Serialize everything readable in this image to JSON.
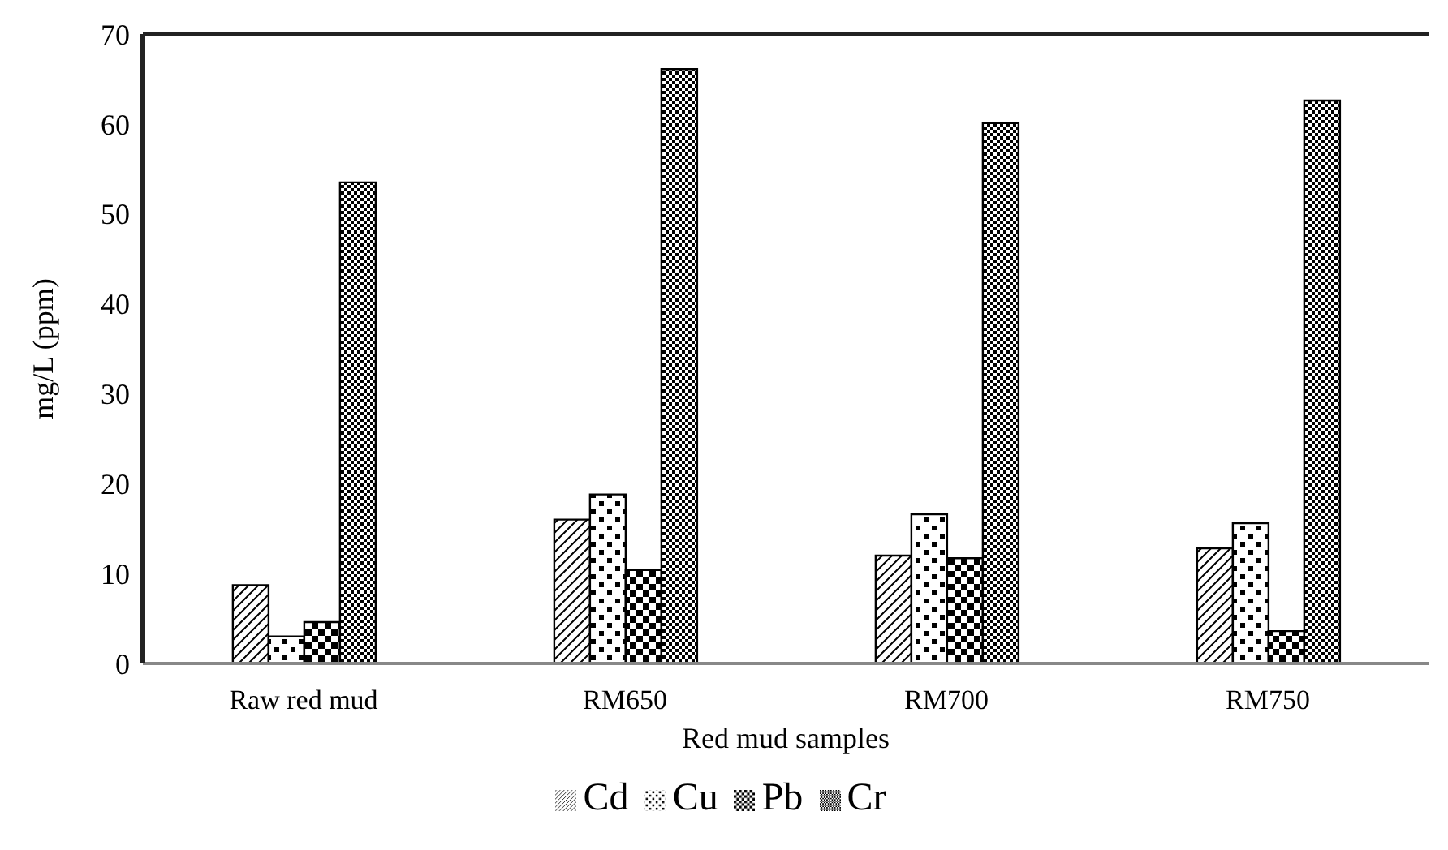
{
  "chart_data": {
    "type": "bar",
    "xlabel": "Red mud samples",
    "ylabel": "mg/L (ppm)",
    "categories": [
      "Raw red mud",
      "RM650",
      "RM700",
      "RM750"
    ],
    "series": [
      {
        "name": "Cd",
        "color": "#000000",
        "values": [
          8.7,
          16.0,
          12.0,
          12.8
        ]
      },
      {
        "name": "Cu",
        "color": "#000000",
        "values": [
          3.0,
          18.8,
          16.6,
          15.6
        ]
      },
      {
        "name": "Pb",
        "color": "#000000",
        "values": [
          4.6,
          10.4,
          11.7,
          3.6
        ]
      },
      {
        "name": "Cr",
        "color": "#000000",
        "values": [
          53.5,
          66.1,
          60.1,
          62.6
        ]
      }
    ],
    "ylim": [
      0,
      70
    ],
    "yticks": [
      0,
      10,
      20,
      30,
      40,
      50,
      60,
      70
    ],
    "legend": "bottom"
  }
}
